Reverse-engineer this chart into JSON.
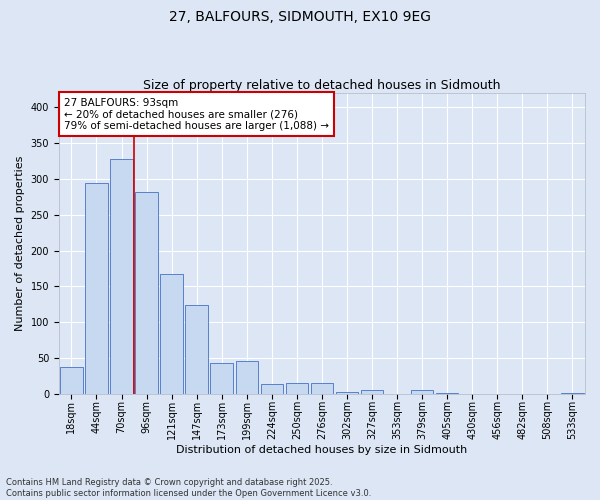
{
  "title": "27, BALFOURS, SIDMOUTH, EX10 9EG",
  "subtitle": "Size of property relative to detached houses in Sidmouth",
  "xlabel": "Distribution of detached houses by size in Sidmouth",
  "ylabel": "Number of detached properties",
  "categories": [
    "18sqm",
    "44sqm",
    "70sqm",
    "96sqm",
    "121sqm",
    "147sqm",
    "173sqm",
    "199sqm",
    "224sqm",
    "250sqm",
    "276sqm",
    "302sqm",
    "327sqm",
    "353sqm",
    "379sqm",
    "405sqm",
    "430sqm",
    "456sqm",
    "482sqm",
    "508sqm",
    "533sqm"
  ],
  "values": [
    38,
    295,
    328,
    282,
    168,
    124,
    43,
    46,
    14,
    15,
    15,
    3,
    5,
    0,
    5,
    1,
    0,
    0,
    0,
    0,
    1
  ],
  "bar_color": "#c6d9f1",
  "bar_edge_color": "#4472c4",
  "vline_position": 2.5,
  "vline_color": "#cc0000",
  "annotation_text": "27 BALFOURS: 93sqm\n← 20% of detached houses are smaller (276)\n79% of semi-detached houses are larger (1,088) →",
  "annotation_box_color": "#ffffff",
  "annotation_box_edge": "#cc0000",
  "ylim": [
    0,
    420
  ],
  "yticks": [
    0,
    50,
    100,
    150,
    200,
    250,
    300,
    350,
    400
  ],
  "footer": "Contains HM Land Registry data © Crown copyright and database right 2025.\nContains public sector information licensed under the Open Government Licence v3.0.",
  "bg_color": "#dce6f5",
  "plot_bg_color": "#dce6f5",
  "grid_color": "#ffffff",
  "title_fontsize": 10,
  "subtitle_fontsize": 9,
  "ylabel_fontsize": 8,
  "xlabel_fontsize": 8,
  "tick_fontsize": 7,
  "footer_fontsize": 6,
  "annot_fontsize": 7.5
}
